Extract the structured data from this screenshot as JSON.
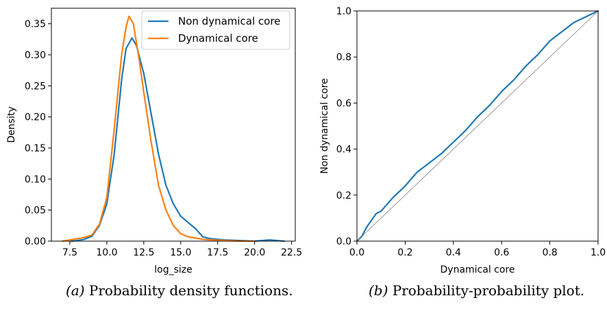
{
  "captions": {
    "a": {
      "tag": "(a)",
      "text": "Probability density functions."
    },
    "b": {
      "tag": "(b)",
      "text": "Probability-probability plot."
    }
  },
  "series_colors": {
    "Non dynamical core": "#1f77b4",
    "Dynamical core": "#ff7f0e"
  },
  "chart_data": [
    {
      "type": "line",
      "title": "",
      "xlabel": "log_size",
      "ylabel": "Density",
      "xlim": [
        6.25,
        22.75
      ],
      "ylim": [
        0,
        0.375
      ],
      "xticks": [
        7.5,
        10.0,
        12.5,
        15.0,
        17.5,
        20.0,
        22.5
      ],
      "xtick_labels": [
        "7.5",
        "10.0",
        "12.5",
        "15.0",
        "17.5",
        "20.0",
        "22.5"
      ],
      "yticks": [
        0.0,
        0.05,
        0.1,
        0.15,
        0.2,
        0.25,
        0.3,
        0.35
      ],
      "ytick_labels": [
        "0.00",
        "0.05",
        "0.10",
        "0.15",
        "0.20",
        "0.25",
        "0.30",
        "0.35"
      ],
      "grid": false,
      "legend": "top-right",
      "series": [
        {
          "name": "Non dynamical core",
          "color": "#1f77b4",
          "x": [
            7.6,
            8.0,
            8.5,
            9.0,
            9.5,
            10.0,
            10.5,
            11.0,
            11.3,
            11.7,
            12.0,
            12.5,
            13.0,
            13.5,
            14.0,
            14.5,
            15.0,
            15.5,
            16.0,
            16.5,
            17.0,
            17.5,
            18.0,
            19.0,
            20.0,
            21.0,
            21.5,
            22.0
          ],
          "y": [
            0.0,
            0.001,
            0.003,
            0.008,
            0.025,
            0.06,
            0.14,
            0.26,
            0.31,
            0.327,
            0.315,
            0.27,
            0.205,
            0.14,
            0.09,
            0.06,
            0.04,
            0.03,
            0.02,
            0.007,
            0.004,
            0.003,
            0.002,
            0.001,
            0.0,
            0.002,
            0.001,
            0.0
          ]
        },
        {
          "name": "Dynamical core",
          "color": "#ff7f0e",
          "x": [
            7.0,
            7.5,
            8.0,
            8.5,
            9.0,
            9.5,
            10.0,
            10.5,
            11.0,
            11.3,
            11.5,
            11.8,
            12.2,
            12.5,
            13.0,
            13.5,
            14.0,
            14.5,
            15.0,
            15.5,
            16.0,
            16.5,
            17.0,
            18.0,
            19.0,
            20.0
          ],
          "y": [
            0.0,
            0.002,
            0.004,
            0.006,
            0.01,
            0.027,
            0.07,
            0.18,
            0.3,
            0.345,
            0.362,
            0.35,
            0.29,
            0.24,
            0.16,
            0.09,
            0.05,
            0.025,
            0.012,
            0.007,
            0.005,
            0.003,
            0.002,
            0.001,
            0.0,
            0.0
          ]
        }
      ]
    },
    {
      "type": "line",
      "title": "",
      "xlabel": "Dynamical core",
      "ylabel": "Non dynamical core",
      "xlim": [
        0.0,
        1.0
      ],
      "ylim": [
        0.0,
        1.0
      ],
      "xticks": [
        0.0,
        0.2,
        0.4,
        0.6,
        0.8,
        1.0
      ],
      "xtick_labels": [
        "0.0",
        "0.2",
        "0.4",
        "0.6",
        "0.8",
        "1.0"
      ],
      "yticks": [
        0.0,
        0.2,
        0.4,
        0.6,
        0.8,
        1.0
      ],
      "ytick_labels": [
        "0.0",
        "0.2",
        "0.4",
        "0.6",
        "0.8",
        "1.0"
      ],
      "grid": false,
      "legend": "none",
      "series": [
        {
          "name": "",
          "color": "#1f77b4",
          "x": [
            0.0,
            0.02,
            0.04,
            0.06,
            0.08,
            0.1,
            0.15,
            0.2,
            0.25,
            0.3,
            0.35,
            0.4,
            0.45,
            0.5,
            0.55,
            0.6,
            0.65,
            0.7,
            0.75,
            0.8,
            0.85,
            0.9,
            0.95,
            1.0
          ],
          "y": [
            0.0,
            0.02,
            0.06,
            0.09,
            0.12,
            0.13,
            0.19,
            0.24,
            0.3,
            0.34,
            0.38,
            0.43,
            0.48,
            0.54,
            0.59,
            0.65,
            0.7,
            0.76,
            0.81,
            0.87,
            0.91,
            0.95,
            0.975,
            1.0
          ]
        },
        {
          "name": "",
          "color": "#808080",
          "x": [
            0.0,
            1.0
          ],
          "y": [
            0.0,
            1.0
          ]
        }
      ]
    }
  ]
}
